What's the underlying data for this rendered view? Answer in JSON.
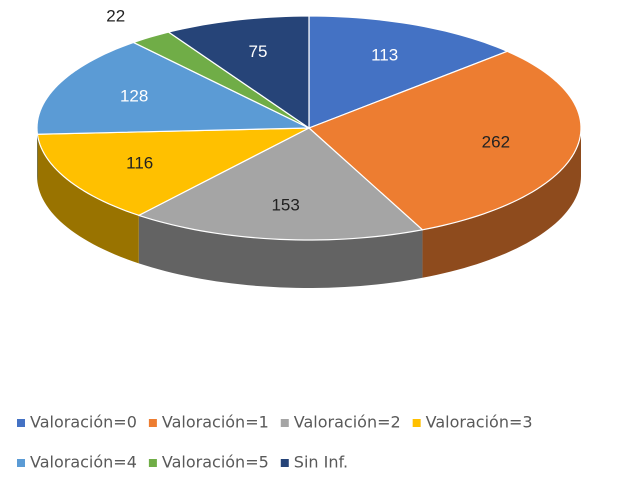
{
  "chart_data": {
    "type": "pie",
    "three_d": true,
    "categories": [
      "Valoración=0",
      "Valoración=1",
      "Valoración=2",
      "Valoración=3",
      "Valoración=4",
      "Valoración=5",
      "Sin Inf."
    ],
    "values": [
      113,
      262,
      153,
      116,
      128,
      22,
      75
    ],
    "colors": [
      "#4472c4",
      "#ed7d31",
      "#a5a5a5",
      "#ffc000",
      "#5b9bd5",
      "#70ad47",
      "#264478"
    ],
    "legend": "bottom"
  }
}
